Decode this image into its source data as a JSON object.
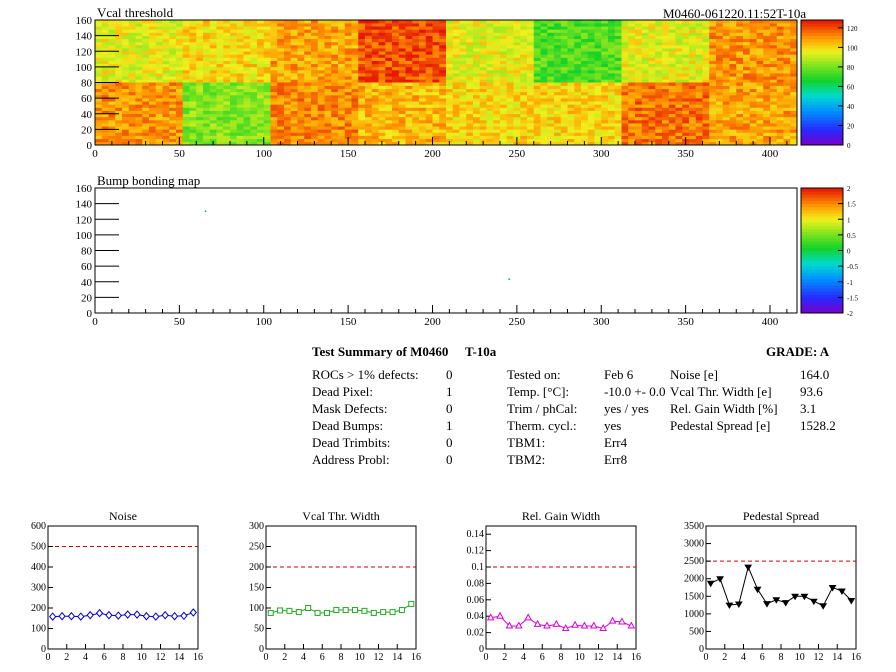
{
  "header": {
    "run_label": "M0460-061220.11:52T-10a"
  },
  "chart_data": [
    {
      "type": "heatmap",
      "title": "Vcal threshold",
      "xlim": [
        0,
        416
      ],
      "ylim": [
        0,
        160
      ],
      "x_ticks": [
        0,
        50,
        100,
        150,
        200,
        250,
        300,
        350,
        400
      ],
      "y_ticks": [
        0,
        20,
        40,
        60,
        80,
        100,
        120,
        140,
        160
      ],
      "zlim": [
        0,
        128
      ],
      "colorbar_ticks": [
        0,
        20,
        40,
        60,
        80,
        100,
        120
      ],
      "roc_mean_values": {
        "top_row": [
          95,
          100,
          108,
          120,
          95,
          75,
          95,
          110
        ],
        "bottom_row": [
          110,
          82,
          112,
          105,
          100,
          100,
          115,
          108
        ]
      }
    },
    {
      "type": "heatmap",
      "title": "Bump bonding map",
      "xlim": [
        0,
        416
      ],
      "ylim": [
        0,
        160
      ],
      "x_ticks": [
        0,
        50,
        100,
        150,
        200,
        250,
        300,
        350,
        400
      ],
      "y_ticks": [
        0,
        20,
        40,
        60,
        80,
        100,
        120,
        140,
        160
      ],
      "zlim": [
        -2,
        2
      ],
      "colorbar_ticks": [
        "-2",
        "-1.5",
        "-1",
        "-0.5",
        "0",
        "0.5",
        "1",
        "1.5",
        "2"
      ],
      "points": [
        {
          "x": 65,
          "y": 130,
          "z": 0.2
        },
        {
          "x": 245,
          "y": 43,
          "z": 0.2
        }
      ]
    },
    {
      "type": "line",
      "title": "Noise",
      "x": [
        0,
        1,
        2,
        3,
        4,
        5,
        6,
        7,
        8,
        9,
        10,
        11,
        12,
        13,
        14,
        15
      ],
      "values": [
        158,
        160,
        160,
        158,
        165,
        175,
        165,
        163,
        168,
        168,
        160,
        158,
        165,
        160,
        162,
        178
      ],
      "xlim": [
        0,
        16
      ],
      "ylim": [
        0,
        600
      ],
      "x_ticks": [
        0,
        2,
        4,
        6,
        8,
        10,
        12,
        14,
        16
      ],
      "y_ticks": [
        0,
        100,
        200,
        300,
        400,
        500,
        600
      ],
      "limit": 500,
      "color": "#0000cc",
      "marker": "diamond"
    },
    {
      "type": "line",
      "title": "Vcal Thr. Width",
      "x": [
        0,
        1,
        2,
        3,
        4,
        5,
        6,
        7,
        8,
        9,
        10,
        11,
        12,
        13,
        14,
        15
      ],
      "values": [
        88,
        94,
        93,
        90,
        100,
        88,
        88,
        95,
        95,
        95,
        93,
        88,
        90,
        90,
        95,
        110
      ],
      "xlim": [
        0,
        16
      ],
      "ylim": [
        0,
        300
      ],
      "x_ticks": [
        0,
        2,
        4,
        6,
        8,
        10,
        12,
        14,
        16
      ],
      "y_ticks": [
        0,
        50,
        100,
        150,
        200,
        250,
        300
      ],
      "limit": 200,
      "color": "#22aa22",
      "marker": "square"
    },
    {
      "type": "line",
      "title": "Rel. Gain Width",
      "x": [
        0,
        1,
        2,
        3,
        4,
        5,
        6,
        7,
        8,
        9,
        10,
        11,
        12,
        13,
        14,
        15
      ],
      "values": [
        0.038,
        0.04,
        0.028,
        0.028,
        0.038,
        0.03,
        0.028,
        0.03,
        0.025,
        0.029,
        0.028,
        0.028,
        0.025,
        0.034,
        0.033,
        0.028
      ],
      "xlim": [
        0,
        16
      ],
      "ylim": [
        0,
        0.15
      ],
      "x_ticks": [
        0,
        2,
        4,
        6,
        8,
        10,
        12,
        14,
        16
      ],
      "y_ticks": [
        "0",
        "0.02",
        "0.04",
        "0.06",
        "0.08",
        "0.1",
        "0.12",
        "0.14"
      ],
      "limit": 0.1,
      "color": "#dd00dd",
      "marker": "triangle"
    },
    {
      "type": "line",
      "title": "Pedestal Spread",
      "x": [
        0,
        1,
        2,
        3,
        4,
        5,
        6,
        7,
        8,
        9,
        10,
        11,
        12,
        13,
        14,
        15
      ],
      "values": [
        1870,
        2000,
        1250,
        1280,
        2330,
        1700,
        1290,
        1400,
        1320,
        1500,
        1500,
        1360,
        1230,
        1750,
        1650,
        1380
      ],
      "xlim": [
        0,
        16
      ],
      "ylim": [
        0,
        3500
      ],
      "x_ticks": [
        0,
        2,
        4,
        6,
        8,
        10,
        12,
        14,
        16
      ],
      "y_ticks": [
        0,
        500,
        1000,
        1500,
        2000,
        2500,
        3000,
        3500
      ],
      "limit": 2500,
      "color": "#000000",
      "marker": "triangle-down"
    }
  ],
  "summary": {
    "title": "Test Summary of M0460",
    "temp_code": "T-10a",
    "grade": "GRADE:  A",
    "defects": [
      {
        "label": "ROCs > 1% defects:",
        "value": "0"
      },
      {
        "label": "Dead Pixel:",
        "value": "1"
      },
      {
        "label": "Mask Defects:",
        "value": "0"
      },
      {
        "label": "Dead Bumps:",
        "value": "1"
      },
      {
        "label": "Dead Trimbits:",
        "value": "0"
      },
      {
        "label": "Address Probl:",
        "value": "0"
      }
    ],
    "conditions": [
      {
        "label": "Tested on:",
        "value": "Feb 6"
      },
      {
        "label": "Temp. [°C]:",
        "value": "-10.0 +- 0.0"
      },
      {
        "label": "Trim / phCal:",
        "value": "yes / yes"
      },
      {
        "label": "Therm. cycl.:",
        "value": "yes"
      },
      {
        "label": "TBM1:",
        "value": "Err4"
      },
      {
        "label": "TBM2:",
        "value": "Err8"
      }
    ],
    "metrics": [
      {
        "label": "Noise [e]",
        "value": "164.0"
      },
      {
        "label": "Vcal Thr. Width [e]",
        "value": "93.6"
      },
      {
        "label": "Rel. Gain Width [%]",
        "value": "3.1"
      },
      {
        "label": "Pedestal Spread [e]",
        "value": "1528.2"
      }
    ]
  }
}
